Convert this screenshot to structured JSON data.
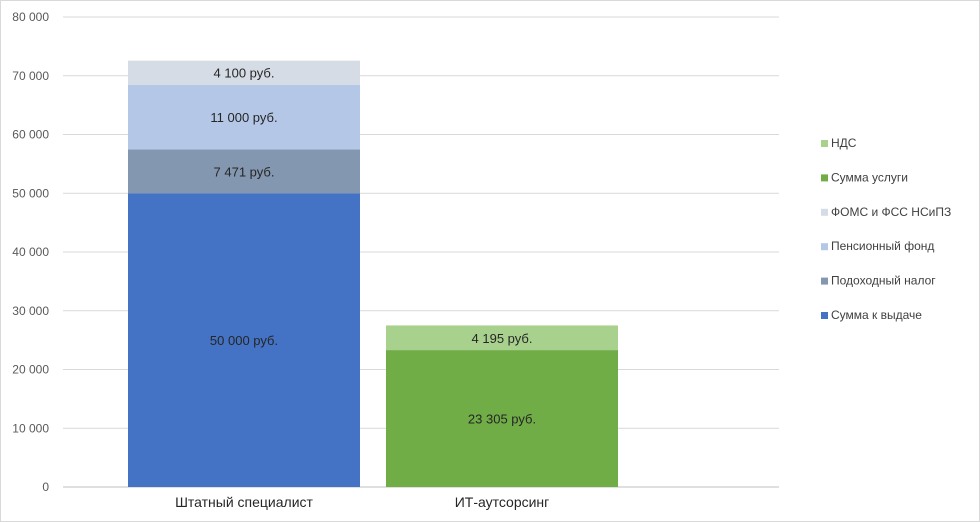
{
  "chart_data": {
    "type": "bar",
    "stacked": true,
    "categories": [
      "Штатный специалист",
      "ИТ-аутсорсинг"
    ],
    "ylim": [
      0,
      80000
    ],
    "ytick_step": 10000,
    "ytick_labels": [
      "0",
      "10 000",
      "20 000",
      "30 000",
      "40 000",
      "50 000",
      "60 000",
      "70 000",
      "80 000"
    ],
    "grid": true,
    "legend_position": "right",
    "series": [
      {
        "name": "Сумма к выдаче",
        "color": "#4472c4",
        "values": [
          50000,
          0
        ],
        "labels": [
          "50 000 руб.",
          ""
        ]
      },
      {
        "name": "Подоходный налог",
        "color": "#8497b0",
        "values": [
          7471,
          0
        ],
        "labels": [
          "7 471 руб.",
          ""
        ]
      },
      {
        "name": "Пенсионный фонд",
        "color": "#b4c7e7",
        "values": [
          11000,
          0
        ],
        "labels": [
          "11 000 руб.",
          ""
        ]
      },
      {
        "name": "ФОМС и ФСС НСиПЗ",
        "color": "#d6dce5",
        "values": [
          4100,
          0
        ],
        "labels": [
          "4 100 руб.",
          ""
        ]
      },
      {
        "name": "Сумма услуги",
        "color": "#70ad47",
        "values": [
          0,
          23305
        ],
        "labels": [
          "",
          "23 305 руб."
        ]
      },
      {
        "name": "НДС",
        "color": "#a9d18e",
        "values": [
          0,
          4195
        ],
        "labels": [
          "",
          "4 195 руб."
        ]
      }
    ],
    "legend_order": [
      "НДС",
      "Сумма услуги",
      "ФОМС и ФСС НСиПЗ",
      "Пенсионный фонд",
      "Подоходный налог",
      "Сумма к выдаче"
    ]
  }
}
